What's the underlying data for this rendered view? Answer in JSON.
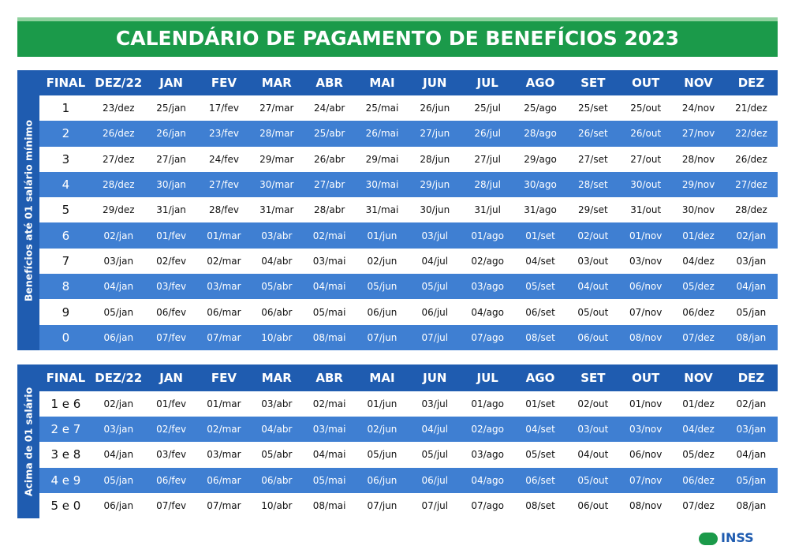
{
  "header": {
    "title": "CALENDÁRIO DE PAGAMENTO DE BENEFÍCIOS 2023"
  },
  "tables": [
    {
      "side_label": "Benefícios até 01 salário mínimo",
      "columns": [
        "FINAL",
        "DEZ/22",
        "JAN",
        "FEV",
        "MAR",
        "ABR",
        "MAI",
        "JUN",
        "JUL",
        "AGO",
        "SET",
        "OUT",
        "NOV",
        "DEZ"
      ],
      "rows": [
        [
          "1",
          "23/dez",
          "25/jan",
          "17/fev",
          "27/mar",
          "24/abr",
          "25/mai",
          "26/jun",
          "25/jul",
          "25/ago",
          "25/set",
          "25/out",
          "24/nov",
          "21/dez"
        ],
        [
          "2",
          "26/dez",
          "26/jan",
          "23/fev",
          "28/mar",
          "25/abr",
          "26/mai",
          "27/jun",
          "26/jul",
          "28/ago",
          "26/set",
          "26/out",
          "27/nov",
          "22/dez"
        ],
        [
          "3",
          "27/dez",
          "27/jan",
          "24/fev",
          "29/mar",
          "26/abr",
          "29/mai",
          "28/jun",
          "27/jul",
          "29/ago",
          "27/set",
          "27/out",
          "28/nov",
          "26/dez"
        ],
        [
          "4",
          "28/dez",
          "30/jan",
          "27/fev",
          "30/mar",
          "27/abr",
          "30/mai",
          "29/jun",
          "28/jul",
          "30/ago",
          "28/set",
          "30/out",
          "29/nov",
          "27/dez"
        ],
        [
          "5",
          "29/dez",
          "31/jan",
          "28/fev",
          "31/mar",
          "28/abr",
          "31/mai",
          "30/jun",
          "31/jul",
          "31/ago",
          "29/set",
          "31/out",
          "30/nov",
          "28/dez"
        ],
        [
          "6",
          "02/jan",
          "01/fev",
          "01/mar",
          "03/abr",
          "02/mai",
          "01/jun",
          "03/jul",
          "01/ago",
          "01/set",
          "02/out",
          "01/nov",
          "01/dez",
          "02/jan"
        ],
        [
          "7",
          "03/jan",
          "02/fev",
          "02/mar",
          "04/abr",
          "03/mai",
          "02/jun",
          "04/jul",
          "02/ago",
          "04/set",
          "03/out",
          "03/nov",
          "04/dez",
          "03/jan"
        ],
        [
          "8",
          "04/jan",
          "03/fev",
          "03/mar",
          "05/abr",
          "04/mai",
          "05/jun",
          "05/jul",
          "03/ago",
          "05/set",
          "04/out",
          "06/nov",
          "05/dez",
          "04/jan"
        ],
        [
          "9",
          "05/jan",
          "06/fev",
          "06/mar",
          "06/abr",
          "05/mai",
          "06/jun",
          "06/jul",
          "04/ago",
          "06/set",
          "05/out",
          "07/nov",
          "06/dez",
          "05/jan"
        ],
        [
          "0",
          "06/jan",
          "07/fev",
          "07/mar",
          "10/abr",
          "08/mai",
          "07/jun",
          "07/jul",
          "07/ago",
          "08/set",
          "06/out",
          "08/nov",
          "07/dez",
          "08/jan"
        ]
      ]
    },
    {
      "side_label": "Acima de 01 salário",
      "columns": [
        "FINAL",
        "DEZ/22",
        "JAN",
        "FEV",
        "MAR",
        "ABR",
        "MAI",
        "JUN",
        "JUL",
        "AGO",
        "SET",
        "OUT",
        "NOV",
        "DEZ"
      ],
      "rows": [
        [
          "1 e 6",
          "02/jan",
          "01/fev",
          "01/mar",
          "03/abr",
          "02/mai",
          "01/jun",
          "03/jul",
          "01/ago",
          "01/set",
          "02/out",
          "01/nov",
          "01/dez",
          "02/jan"
        ],
        [
          "2 e 7",
          "03/jan",
          "02/fev",
          "02/mar",
          "04/abr",
          "03/mai",
          "02/jun",
          "04/jul",
          "02/ago",
          "04/set",
          "03/out",
          "03/nov",
          "04/dez",
          "03/jan"
        ],
        [
          "3 e 8",
          "04/jan",
          "03/fev",
          "03/mar",
          "05/abr",
          "04/mai",
          "05/jun",
          "05/jul",
          "03/ago",
          "05/set",
          "04/out",
          "06/nov",
          "05/dez",
          "04/jan"
        ],
        [
          "4 e 9",
          "05/jan",
          "06/fev",
          "06/mar",
          "06/abr",
          "05/mai",
          "06/jun",
          "06/jul",
          "04/ago",
          "06/set",
          "05/out",
          "07/nov",
          "06/dez",
          "05/jan"
        ],
        [
          "5 e 0",
          "06/jan",
          "07/fev",
          "07/mar",
          "10/abr",
          "08/mai",
          "07/jun",
          "07/jul",
          "07/ago",
          "08/set",
          "06/out",
          "08/nov",
          "07/dez",
          "08/jan"
        ]
      ]
    }
  ],
  "logo": {
    "text": "INSS"
  }
}
